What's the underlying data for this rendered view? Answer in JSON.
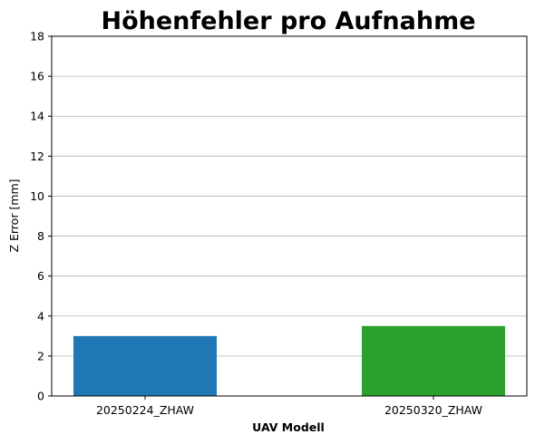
{
  "chart_data": {
    "type": "bar",
    "title": "Höhenfehler pro Aufnahme",
    "xlabel": "UAV Modell",
    "ylabel": "Z Error [mm]",
    "categories": [
      "20250224_ZHAW",
      "20250320_ZHAW"
    ],
    "values": [
      3.0,
      3.5
    ],
    "colors": [
      "#1f77b4",
      "#2ca02c"
    ],
    "ylim": [
      0,
      18
    ],
    "yticks": [
      0,
      2,
      4,
      6,
      8,
      10,
      12,
      14,
      16,
      18
    ],
    "grid": "y",
    "legend": "none"
  }
}
